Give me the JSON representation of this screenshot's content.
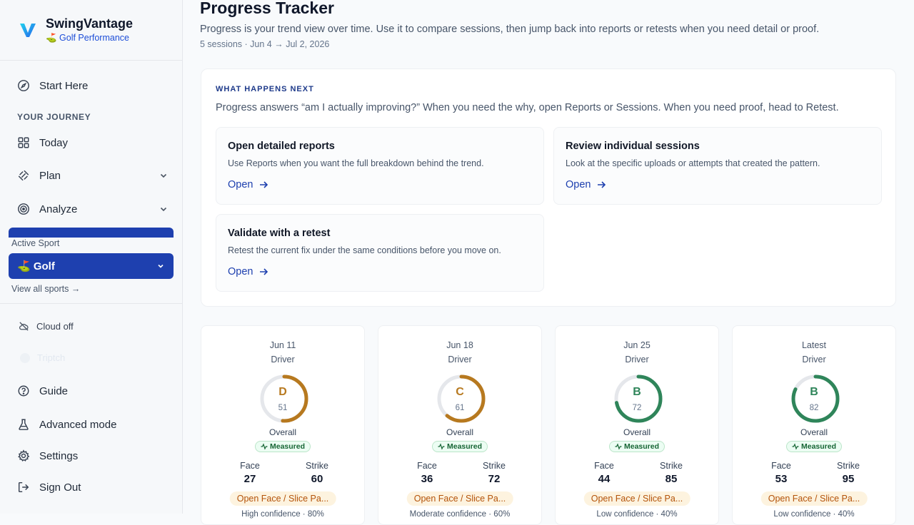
{
  "brand": {
    "name": "SwingVantage",
    "subtitle": "⛳ Golf Performance"
  },
  "sidebar": {
    "start_here": "Start Here",
    "section_label": "YOUR JOURNEY",
    "items": [
      {
        "label": "Today",
        "icon": "grid-icon"
      },
      {
        "label": "Plan",
        "icon": "dumbbell-icon",
        "expandable": true
      },
      {
        "label": "Analyze",
        "icon": "target-icon",
        "expandable": true
      }
    ],
    "active_sport_label": "Active Sport",
    "active_sport": "⛳  Golf",
    "view_all_sports": "View all sports →",
    "cloud_status": "Cloud off",
    "ghost_item": "Triptch",
    "bottom_items": [
      {
        "label": "Guide",
        "icon": "help-circle-icon"
      },
      {
        "label": "Advanced mode",
        "icon": "flask-icon"
      },
      {
        "label": "Settings",
        "icon": "gear-icon"
      },
      {
        "label": "Sign Out",
        "icon": "sign-out-icon"
      }
    ]
  },
  "page": {
    "title": "Progress Tracker",
    "description": "Progress is your trend view over time. Use it to compare sessions, then jump back into reports or retests when you need detail or proof.",
    "meta": "5 sessions · Jun 4 → Jul 2, 2026"
  },
  "next": {
    "kicker": "WHAT HAPPENS NEXT",
    "text": "Progress answers “am I actually improving?” When you need the why, open Reports or Sessions. When you need proof, head to Retest.",
    "actions": [
      {
        "title": "Open detailed reports",
        "desc": "Use Reports when you want the full breakdown behind the trend.",
        "link": "Open"
      },
      {
        "title": "Review individual sessions",
        "desc": "Look at the specific uploads or attempts that created the pattern.",
        "link": "Open"
      },
      {
        "title": "Validate with a retest",
        "desc": "Retest the current fix under the same conditions before you move on.",
        "link": "Open"
      }
    ]
  },
  "colors": {
    "accent": "#1e40af",
    "grade_low": "#b7791f",
    "grade_good": "#2f855a"
  },
  "sessions": [
    {
      "date": "Jun 11",
      "club": "Driver",
      "grade": "D",
      "score": "51",
      "score_pct": 51,
      "overall": "Overall",
      "badge": "Measured",
      "face_label": "Face",
      "face": "27",
      "strike_label": "Strike",
      "strike": "60",
      "pattern": "Open Face / Slice Pa...",
      "confidence": "High confidence · 80%",
      "tone": "low"
    },
    {
      "date": "Jun 18",
      "club": "Driver",
      "grade": "C",
      "score": "61",
      "score_pct": 61,
      "overall": "Overall",
      "badge": "Measured",
      "face_label": "Face",
      "face": "36",
      "strike_label": "Strike",
      "strike": "72",
      "pattern": "Open Face / Slice Pa...",
      "confidence": "Moderate confidence · 60%",
      "tone": "low"
    },
    {
      "date": "Jun 25",
      "club": "Driver",
      "grade": "B",
      "score": "72",
      "score_pct": 72,
      "overall": "Overall",
      "badge": "Measured",
      "face_label": "Face",
      "face": "44",
      "strike_label": "Strike",
      "strike": "85",
      "pattern": "Open Face / Slice Pa...",
      "confidence": "Low confidence · 40%",
      "tone": "good"
    },
    {
      "date": "Latest",
      "club": "Driver",
      "grade": "B",
      "score": "82",
      "score_pct": 82,
      "overall": "Overall",
      "badge": "Measured",
      "face_label": "Face",
      "face": "53",
      "strike_label": "Strike",
      "strike": "95",
      "pattern": "Open Face / Slice Pa...",
      "confidence": "Low confidence · 40%",
      "tone": "good"
    }
  ]
}
